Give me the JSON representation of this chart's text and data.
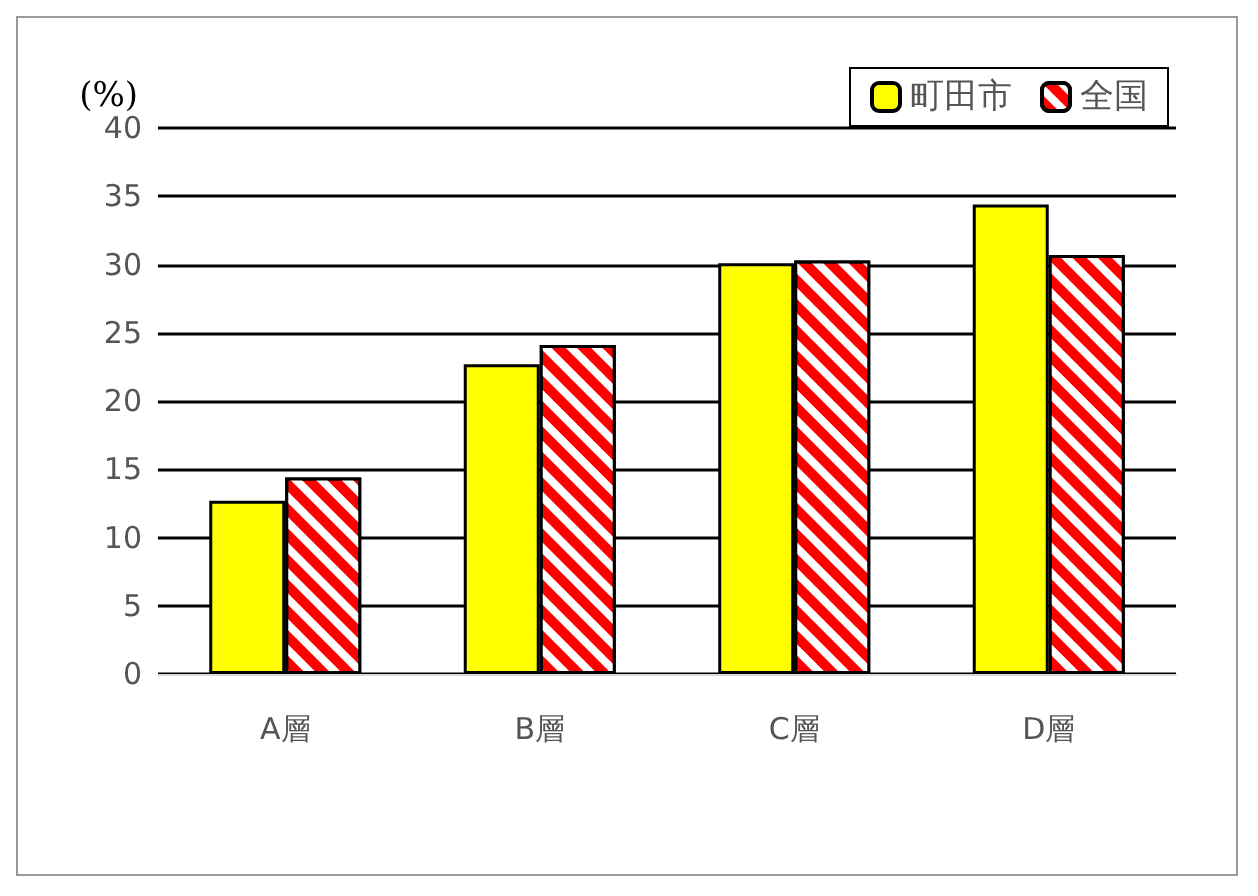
{
  "chart_data": {
    "type": "bar",
    "ylabel": "(%)",
    "categories": [
      "A層",
      "B層",
      "C層",
      "D層"
    ],
    "series": [
      {
        "name": "町田市",
        "color": "#ffff00",
        "values": [
          12.7,
          22.7,
          30.1,
          34.4
        ]
      },
      {
        "name": "全国",
        "color": "#ff0000",
        "values": [
          14.4,
          24.1,
          30.3,
          30.7
        ]
      }
    ],
    "ylim": [
      0,
      40
    ],
    "yticks": [
      0,
      5,
      10,
      15,
      20,
      25,
      30,
      35,
      40
    ],
    "grid": "y",
    "legend": "top right"
  }
}
